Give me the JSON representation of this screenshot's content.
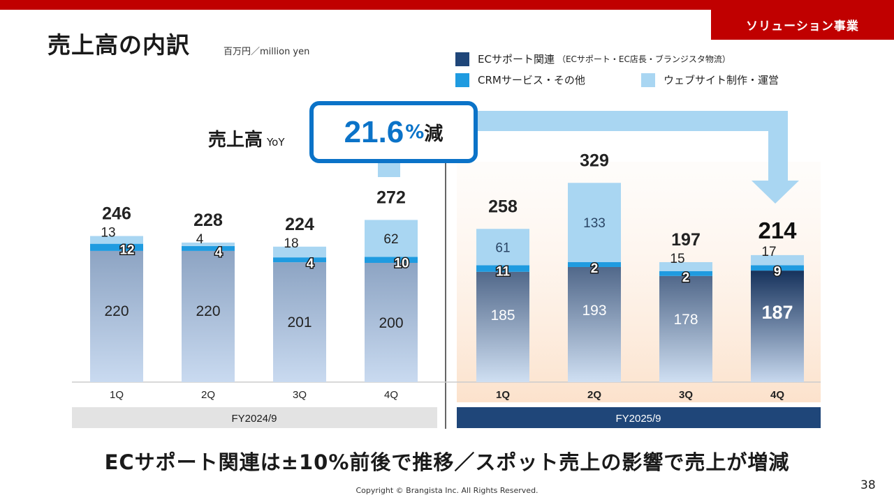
{
  "header": {
    "section_tab": "ソリューション事業"
  },
  "title": "売上高の内訳",
  "unit": "百万円／million yen",
  "legend": {
    "ec_label": "ECサポート関連",
    "ec_note": "（ECサポート・EC店長・ブランジスタ物流）",
    "crm_label": "CRMサービス・その他",
    "web_label": "ウェブサイト制作・運営"
  },
  "yoy": {
    "label": "売上高",
    "sublabel": "YoY",
    "value": "21.6",
    "unit": "%",
    "direction": "減"
  },
  "colors": {
    "brand_red": "#c00000",
    "ec_fy2024": "#8ea6c4",
    "ec_fy2025": "#51688a",
    "ec_highlight": "#1b3a66",
    "crm": "#1f9be0",
    "web": "#a9d6f2",
    "fy2024_band": "#e3e3e3",
    "fy2025_band": "#1f4679",
    "yoy_accent": "#0b73c8"
  },
  "chart_data": {
    "type": "bar",
    "stacked": true,
    "title": "売上高の内訳",
    "unit": "百万円／million yen",
    "categories": [
      "1Q",
      "2Q",
      "3Q",
      "4Q",
      "1Q",
      "2Q",
      "3Q",
      "4Q"
    ],
    "groups": [
      {
        "name": "FY2024/9",
        "indices": [
          0,
          1,
          2,
          3
        ]
      },
      {
        "name": "FY2025/9",
        "indices": [
          4,
          5,
          6,
          7
        ]
      }
    ],
    "series": [
      {
        "name": "ECサポート関連",
        "values": [
          220,
          220,
          201,
          200,
          185,
          193,
          178,
          187
        ]
      },
      {
        "name": "CRMサービス・その他",
        "values": [
          12,
          4,
          4,
          10,
          11,
          2,
          2,
          9
        ]
      },
      {
        "name": "ウェブサイト制作・運営",
        "values": [
          13,
          4,
          18,
          62,
          61,
          133,
          15,
          17
        ]
      }
    ],
    "totals": [
      246,
      228,
      224,
      272,
      258,
      329,
      197,
      214
    ],
    "highlight_index": 7,
    "ylim": [
      0,
      350
    ],
    "xlabel": "",
    "ylabel": ""
  },
  "summary": "ECサポート関連は±10%前後で推移／スポット売上の影響で売上が増減",
  "footer": {
    "copyright": "Copyright © Brangista Inc. All Rights Reserved.",
    "page_number": "38"
  }
}
